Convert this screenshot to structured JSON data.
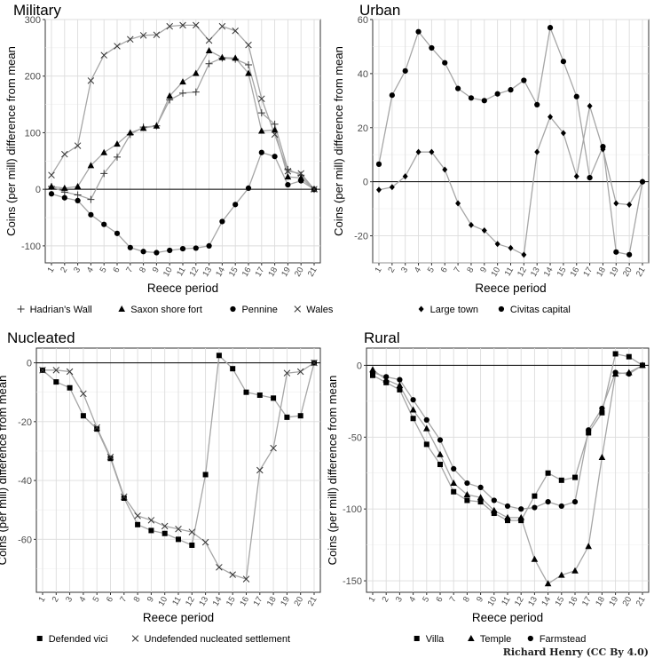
{
  "credit": "Richard Henry (CC By 4.0)",
  "chart_data": [
    {
      "type": "line",
      "title": "Military",
      "xlabel": "Reece period",
      "ylabel": "Coins (per mill) difference from mean",
      "x": [
        "1",
        "2",
        "3",
        "4",
        "5",
        "6",
        "7",
        "8",
        "9",
        "10",
        "11",
        "12",
        "13",
        "14",
        "15",
        "16",
        "17",
        "18",
        "19",
        "20",
        "21"
      ],
      "ylim": [
        -130,
        300
      ],
      "yticks": [
        -100,
        0,
        100,
        200,
        300
      ],
      "grid": true,
      "legend_position": "bottom",
      "series": [
        {
          "name": "Hadrian's Wall",
          "marker": "plus",
          "values": [
            5,
            -5,
            -10,
            -18,
            28,
            57,
            97,
            110,
            112,
            158,
            170,
            172,
            222,
            232,
            230,
            220,
            135,
            115,
            35,
            25,
            0
          ]
        },
        {
          "name": "Saxon shore fort",
          "marker": "triangle",
          "values": [
            5,
            2,
            5,
            42,
            65,
            80,
            100,
            108,
            112,
            165,
            190,
            205,
            245,
            233,
            232,
            205,
            103,
            105,
            22,
            20,
            0
          ]
        },
        {
          "name": "Pennine",
          "marker": "circle",
          "values": [
            -8,
            -15,
            -20,
            -45,
            -62,
            -78,
            -103,
            -110,
            -112,
            -108,
            -105,
            -104,
            -100,
            -57,
            -27,
            2,
            65,
            58,
            8,
            15,
            0
          ]
        },
        {
          "name": "Wales",
          "marker": "cross",
          "values": [
            25,
            62,
            77,
            192,
            237,
            253,
            265,
            272,
            273,
            288,
            290,
            290,
            263,
            288,
            280,
            255,
            160,
            97,
            32,
            28,
            0
          ]
        }
      ]
    },
    {
      "type": "line",
      "title": "Urban",
      "xlabel": "Reece period",
      "ylabel": "Coins (per mill) difference from mean",
      "x": [
        "1",
        "2",
        "3",
        "4",
        "5",
        "6",
        "7",
        "8",
        "9",
        "10",
        "11",
        "12",
        "13",
        "14",
        "15",
        "16",
        "17",
        "18",
        "19",
        "20",
        "21"
      ],
      "ylim": [
        -30,
        60
      ],
      "yticks": [
        -20,
        0,
        20,
        40,
        60
      ],
      "grid": true,
      "legend_position": "bottom",
      "series": [
        {
          "name": "Large town",
          "marker": "diamond",
          "values": [
            -3,
            -2,
            2,
            11,
            11,
            4.5,
            -8,
            -16,
            -18,
            -23,
            -24.5,
            -27,
            11,
            24,
            18,
            2,
            28,
            12,
            -8,
            -8.5,
            0
          ]
        },
        {
          "name": "Civitas capital",
          "marker": "circle",
          "values": [
            6.5,
            32,
            41,
            55.5,
            49.5,
            44,
            34.5,
            31,
            30,
            32.5,
            34,
            37.5,
            28.5,
            57,
            44.5,
            31.5,
            1.5,
            13,
            -26,
            -27,
            0
          ]
        }
      ]
    },
    {
      "type": "line",
      "title": "Nucleated",
      "xlabel": "Reece period",
      "ylabel": "Coins (per mill) difference from mean",
      "x": [
        "1",
        "2",
        "3",
        "4",
        "5",
        "6",
        "7",
        "8",
        "9",
        "10",
        "11",
        "12",
        "13",
        "14",
        "15",
        "16",
        "17",
        "18",
        "19",
        "20",
        "21"
      ],
      "ylim": [
        -78,
        5
      ],
      "yticks": [
        -60,
        -40,
        -20,
        0
      ],
      "grid": true,
      "legend_position": "bottom",
      "series": [
        {
          "name": "Defended vici",
          "marker": "square",
          "values": [
            -2.5,
            -6.5,
            -8.5,
            -18,
            -22.5,
            -32.5,
            -46,
            -55,
            -57,
            -58,
            -60,
            -62,
            -38,
            2.5,
            -2,
            -10,
            -11,
            -12,
            -18.5,
            -18,
            0
          ]
        },
        {
          "name": "Undefended nucleated settlement",
          "marker": "cross",
          "values": [
            -2.5,
            -2.5,
            -3,
            -10.5,
            -22,
            -32,
            -45.5,
            -52,
            -53.5,
            -55.5,
            -56.5,
            -57.5,
            -61,
            -69.5,
            -72,
            -73.5,
            -36.5,
            -29,
            -3.5,
            -3,
            0
          ]
        }
      ]
    },
    {
      "type": "line",
      "title": "Rural",
      "xlabel": "Reece period",
      "ylabel": "Coins (per mill) difference from mean",
      "x": [
        "1",
        "2",
        "3",
        "4",
        "5",
        "6",
        "7",
        "8",
        "9",
        "10",
        "11",
        "12",
        "13",
        "14",
        "15",
        "16",
        "17",
        "18",
        "19",
        "20",
        "21"
      ],
      "ylim": [
        -158,
        12
      ],
      "yticks": [
        -150,
        -100,
        -50,
        0
      ],
      "grid": true,
      "legend_position": "bottom",
      "series": [
        {
          "name": "Villa",
          "marker": "square",
          "values": [
            -7,
            -12,
            -17,
            -37,
            -55,
            -69,
            -88,
            -94,
            -95,
            -103,
            -108,
            -108,
            -91,
            -75,
            -80,
            -78,
            -47,
            -33,
            8,
            6,
            0
          ]
        },
        {
          "name": "Temple",
          "marker": "triangle",
          "values": [
            -3,
            -10,
            -14,
            -31,
            -44,
            -62,
            -82,
            -90,
            -92,
            -101,
            -106,
            -106,
            -135,
            -152,
            -146,
            -143,
            -126,
            -64,
            -6,
            -5,
            0
          ]
        },
        {
          "name": "Farmstead",
          "marker": "circle",
          "values": [
            -5,
            -8,
            -10,
            -24,
            -38,
            -52,
            -72,
            -82,
            -85,
            -94,
            -98,
            -100,
            -99,
            -95,
            -98,
            -95,
            -45,
            -30,
            -5,
            -6,
            0
          ]
        }
      ]
    }
  ]
}
